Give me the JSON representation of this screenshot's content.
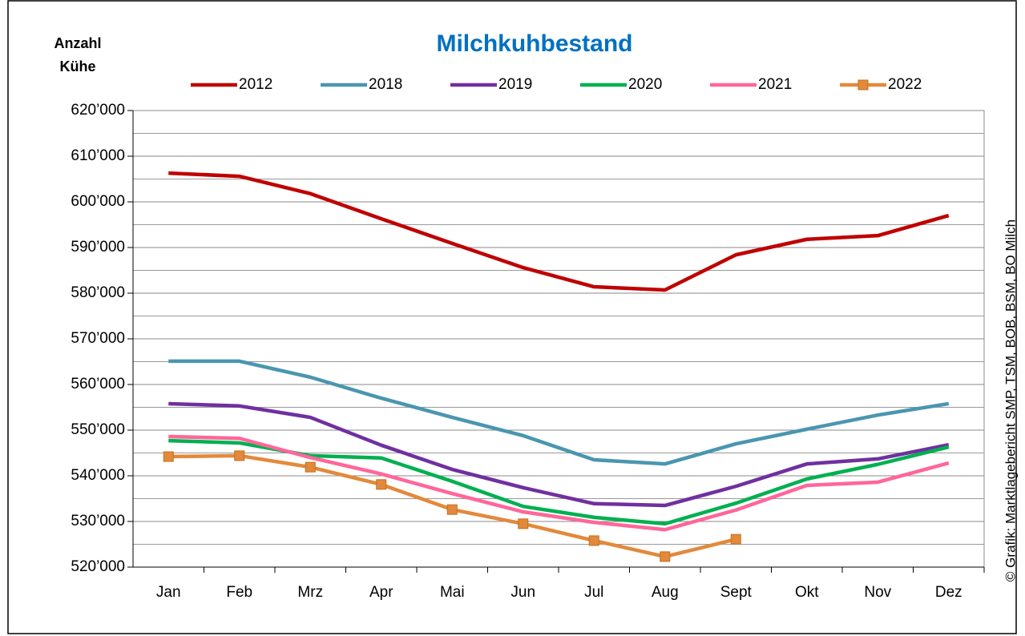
{
  "chart_data": {
    "type": "line",
    "title": "Milchkuhbestand",
    "ylabel": [
      "Anzahl",
      "Kühe"
    ],
    "source": "© Grafik: Marktlagebericht SMP, TSM, BOB, BSM, BO Milch",
    "categories": [
      "Jan",
      "Feb",
      "Mrz",
      "Apr",
      "Mai",
      "Jun",
      "Jul",
      "Aug",
      "Sept",
      "Okt",
      "Nov",
      "Dez"
    ],
    "series": [
      {
        "name": "2012",
        "color": "#c00000",
        "values": [
          606300,
          605600,
          601800,
          596300,
          590900,
          585600,
          581400,
          580700,
          588400,
          591800,
          592600,
          597000
        ]
      },
      {
        "name": "2018",
        "color": "#4a96b0",
        "values": [
          565100,
          565100,
          561600,
          557000,
          552800,
          548800,
          543500,
          542600,
          547000,
          550200,
          553300,
          555800
        ]
      },
      {
        "name": "2019",
        "color": "#7030a0",
        "values": [
          555800,
          555300,
          552800,
          546700,
          541400,
          537400,
          533900,
          533500,
          537700,
          542600,
          543700,
          546800
        ]
      },
      {
        "name": "2020",
        "color": "#00b050",
        "values": [
          547700,
          547200,
          544400,
          543900,
          538800,
          533300,
          530900,
          529500,
          534000,
          539300,
          542500,
          546300
        ]
      },
      {
        "name": "2021",
        "color": "#ff6699",
        "values": [
          548600,
          548200,
          544000,
          540400,
          536100,
          532100,
          529800,
          528200,
          532500,
          537900,
          538600,
          542800
        ]
      },
      {
        "name": "2022",
        "color": "#e3893b",
        "marker": "square",
        "values": [
          544200,
          544400,
          541900,
          538100,
          532600,
          529500,
          525800,
          522300,
          526100,
          null,
          null,
          null
        ]
      }
    ],
    "ylim": [
      520000,
      620000
    ],
    "yticks": [
      {
        "value": 520000,
        "label": "520’000"
      },
      {
        "value": 530000,
        "label": "530’000"
      },
      {
        "value": 540000,
        "label": "540’000"
      },
      {
        "value": 550000,
        "label": "550’000"
      },
      {
        "value": 560000,
        "label": "560’000"
      },
      {
        "value": 570000,
        "label": "570’000"
      },
      {
        "value": 580000,
        "label": "580’000"
      },
      {
        "value": 590000,
        "label": "590’000"
      },
      {
        "value": 600000,
        "label": "600’000"
      },
      {
        "value": 610000,
        "label": "610’000"
      },
      {
        "value": 620000,
        "label": "620’000"
      }
    ],
    "yminorticks": [
      525000,
      535000,
      545000,
      555000,
      565000,
      575000,
      585000,
      595000,
      605000,
      615000
    ],
    "grid": true
  }
}
